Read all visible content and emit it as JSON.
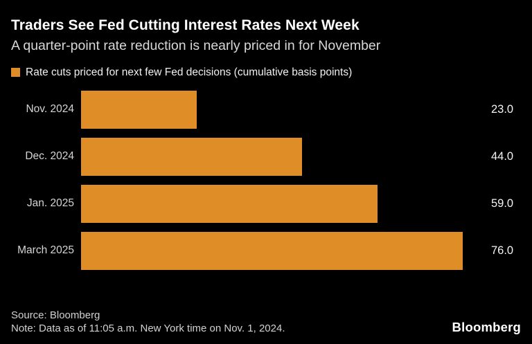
{
  "header": {
    "title": "Traders See Fed Cutting Interest Rates Next Week",
    "subtitle": "A quarter-point rate reduction is nearly priced in for November"
  },
  "legend": {
    "label": "Rate cuts priced for next few Fed decisions (cumulative basis points)",
    "swatch_color": "#DF8E27"
  },
  "chart_data": {
    "type": "bar",
    "orientation": "horizontal",
    "title": "Rate cuts priced for next few Fed decisions (cumulative basis points)",
    "categories": [
      "Nov. 2024",
      "Dec. 2024",
      "Jan. 2025",
      "March 2025"
    ],
    "values": [
      23.0,
      44.0,
      59.0,
      76.0
    ],
    "value_labels": [
      "23.0",
      "44.0",
      "59.0",
      "76.0"
    ],
    "xlabel": "",
    "ylabel": "",
    "xlim": [
      0,
      80
    ],
    "bar_color": "#DF8E27",
    "background_color": "#000000",
    "grid": false,
    "legend_position": "top-left",
    "value_label_position": "right-of-bar"
  },
  "footer": {
    "source": "Source: Bloomberg",
    "note": "Note: Data as of 11:05 a.m. New York time on Nov. 1, 2024.",
    "brand": "Bloomberg"
  }
}
